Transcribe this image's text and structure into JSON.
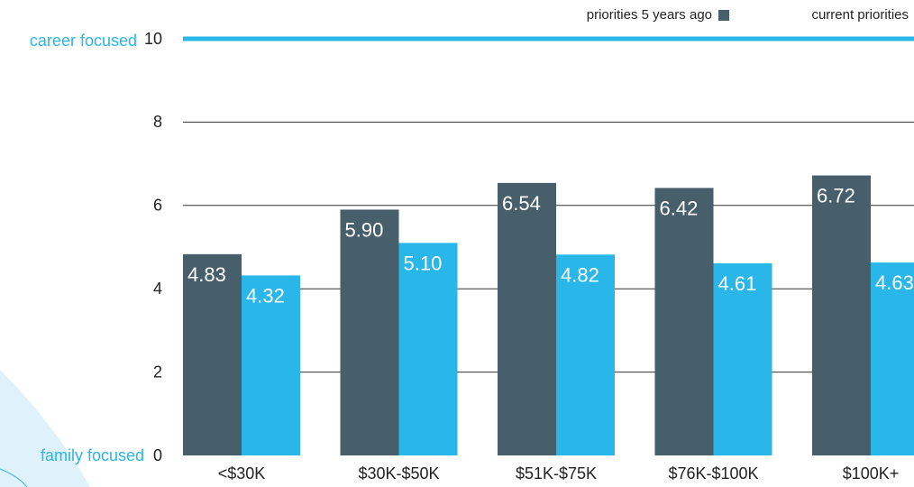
{
  "chart_data": {
    "type": "bar",
    "categories": [
      "<$30K",
      "$30K-$50K",
      "$51K-$75K",
      "$76K-$100K",
      "$100K+"
    ],
    "series": [
      {
        "name": "priorities 5 years ago",
        "color": "#475e6b",
        "values": [
          4.83,
          5.9,
          6.54,
          6.42,
          6.72
        ],
        "value_labels": [
          "4.83",
          "5.90",
          "6.54",
          "6.42",
          "6.72"
        ]
      },
      {
        "name": "current priorities",
        "color": "#29b6e8",
        "values": [
          4.32,
          5.1,
          4.82,
          4.61,
          4.63
        ],
        "value_labels": [
          "4.32",
          "5.10",
          "4.82",
          "4.61",
          "4.63"
        ]
      }
    ],
    "ylim": [
      0,
      10
    ],
    "yticks": [
      0,
      2,
      4,
      6,
      8,
      10
    ],
    "y_top_label": "career focused",
    "y_bottom_label": "family focused",
    "grid": true
  }
}
